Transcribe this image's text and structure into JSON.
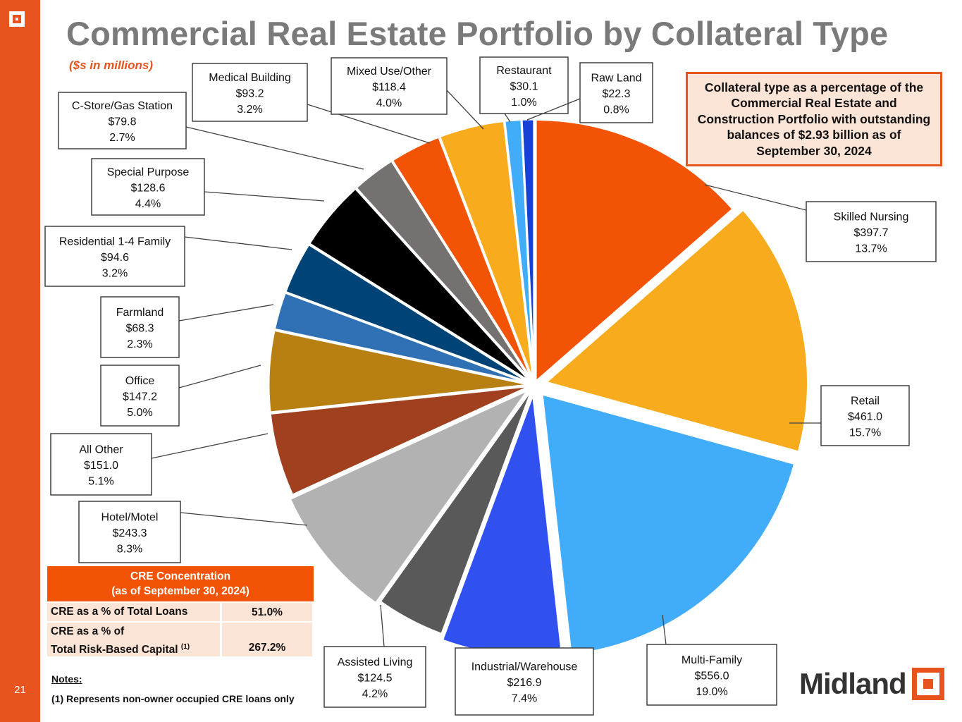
{
  "page": {
    "title": "Commercial Real Estate Portfolio by Collateral Type",
    "subtitle": "($s in millions)",
    "page_number": "21",
    "callout": "Collateral type as a percentage of the Commercial Real Estate and Construction Portfolio with outstanding balances of $2.93 billion as of September 30, 2024",
    "brand": "Midland"
  },
  "chart_data": {
    "type": "pie",
    "title": "Commercial Real Estate Portfolio by Collateral Type",
    "unit": "$ in millions",
    "start": "12 o'clock, clockwise",
    "slices": [
      {
        "name": "Skilled Nursing",
        "value": "$397.7",
        "amount": 397.7,
        "percent": "13.7%",
        "pct": 13.7,
        "color": "#F25305"
      },
      {
        "name": "Retail",
        "value": "$461.0",
        "amount": 461.0,
        "percent": "15.7%",
        "pct": 15.7,
        "color": "#F8AB1D"
      },
      {
        "name": "Multi-Family",
        "value": "$556.0",
        "amount": 556.0,
        "percent": "19.0%",
        "pct": 19.0,
        "color": "#41ADFA"
      },
      {
        "name": "Industrial/Warehouse",
        "value": "$216.9",
        "amount": 216.9,
        "percent": "7.4%",
        "pct": 7.4,
        "color": "#3051EF"
      },
      {
        "name": "Assisted Living",
        "value": "$124.5",
        "amount": 124.5,
        "percent": "4.2%",
        "pct": 4.2,
        "color": "#595959"
      },
      {
        "name": "Hotel/Motel",
        "value": "$243.3",
        "amount": 243.3,
        "percent": "8.3%",
        "pct": 8.3,
        "color": "#B2B2B2"
      },
      {
        "name": "All Other",
        "value": "$151.0",
        "amount": 151.0,
        "percent": "5.1%",
        "pct": 5.1,
        "color": "#A1401F"
      },
      {
        "name": "Office",
        "value": "$147.2",
        "amount": 147.2,
        "percent": "5.0%",
        "pct": 5.0,
        "color": "#B87F12"
      },
      {
        "name": "Farmland",
        "value": "$68.3",
        "amount": 68.3,
        "percent": "2.3%",
        "pct": 2.3,
        "color": "#2F71B4"
      },
      {
        "name": "Residential 1-4 Family",
        "value": "$94.6",
        "amount": 94.6,
        "percent": "3.2%",
        "pct": 3.2,
        "color": "#004377"
      },
      {
        "name": "Special Purpose",
        "value": "$128.6",
        "amount": 128.6,
        "percent": "4.4%",
        "pct": 4.4,
        "color": "#000000"
      },
      {
        "name": "C-Store/Gas Station",
        "value": "$79.8",
        "amount": 79.8,
        "percent": "2.7%",
        "pct": 2.7,
        "color": "#767171"
      },
      {
        "name": "Medical Building",
        "value": "$93.2",
        "amount": 93.2,
        "percent": "3.2%",
        "pct": 3.2,
        "color": "#F25305"
      },
      {
        "name": "Mixed Use/Other",
        "value": "$118.4",
        "amount": 118.4,
        "percent": "4.0%",
        "pct": 4.0,
        "color": "#F8AB1D"
      },
      {
        "name": "Restaurant",
        "value": "$30.1",
        "amount": 30.1,
        "percent": "1.0%",
        "pct": 1.0,
        "color": "#41ADFA"
      },
      {
        "name": "Raw Land",
        "value": "$22.3",
        "amount": 22.3,
        "percent": "0.8%",
        "pct": 0.8,
        "color": "#1740D6"
      }
    ]
  },
  "cre_table": {
    "header_line1": "CRE Concentration",
    "header_line2": "(as of September 30, 2024)",
    "row1_label": "CRE as a % of Total Loans",
    "row1_value": "51.0%",
    "row2_label_line1": "CRE as a % of",
    "row2_label_line2": "Total Risk-Based Capital",
    "row2_footnote": "(1)",
    "row2_value": "267.2%"
  },
  "notes": {
    "heading": "Notes:",
    "note1": "(1)   Represents non-owner occupied CRE loans only"
  }
}
